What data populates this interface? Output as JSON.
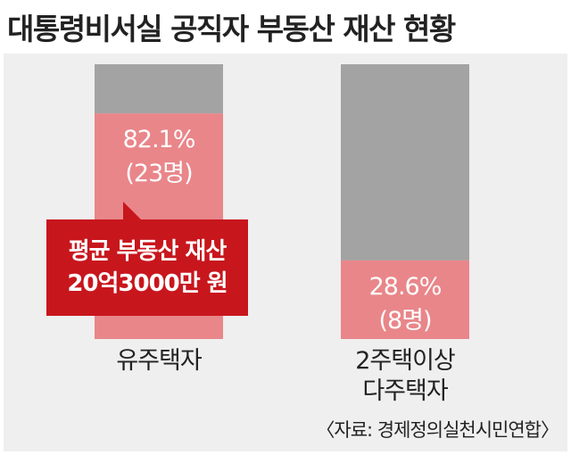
{
  "title": "대통령비서실 공직자 부동산 재산 현황",
  "callout": {
    "line1": "평균 부동산 재산",
    "line2": "20억3000만 원"
  },
  "source": "〈자료: 경제정의실천시민연합〉",
  "colors": {
    "rest": "#a3a3a3",
    "highlight": "#e9868a",
    "callout": "#c8161d",
    "panel": "#efefef"
  },
  "chart_data": {
    "type": "bar",
    "stacked": true,
    "ylim": [
      0,
      100
    ],
    "categories": [
      {
        "label_lines": [
          "유주택자"
        ],
        "value_pct": 82.1,
        "value_label": "82.1%",
        "count_label": "(23명)"
      },
      {
        "label_lines": [
          "2주택이상",
          "다주택자"
        ],
        "value_pct": 28.6,
        "value_label": "28.6%",
        "count_label": "(8명)"
      }
    ]
  }
}
